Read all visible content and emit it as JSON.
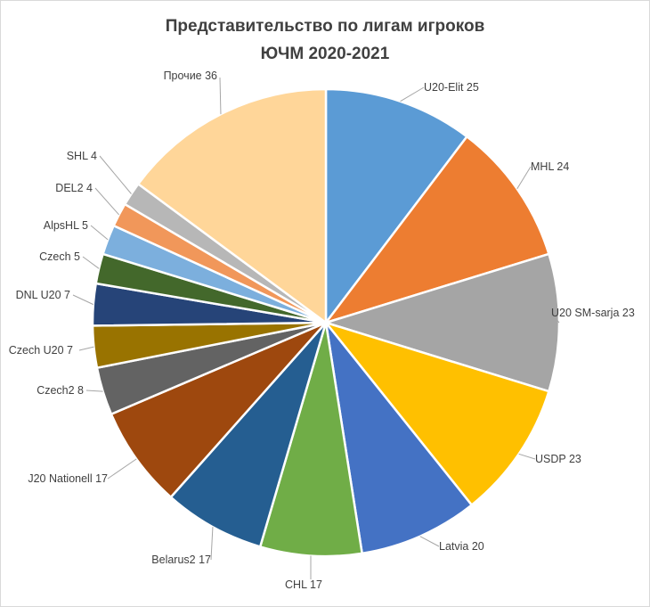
{
  "chart_data": {
    "type": "pie",
    "title_line1": "Представительство по лигам игроков",
    "title_line2": "ЮЧМ 2020-2021",
    "slices": [
      {
        "label": "U20-Elit",
        "value": 25,
        "color": "#5b9bd5"
      },
      {
        "label": "MHL",
        "value": 24,
        "color": "#ed7d31"
      },
      {
        "label": "U20 SM-sarja",
        "value": 23,
        "color": "#a5a5a5"
      },
      {
        "label": "USDP",
        "value": 23,
        "color": "#ffc000"
      },
      {
        "label": "Latvia",
        "value": 20,
        "color": "#4472c4"
      },
      {
        "label": "CHL",
        "value": 17,
        "color": "#70ad47"
      },
      {
        "label": "Belarus2",
        "value": 17,
        "color": "#255e91"
      },
      {
        "label": "J20 Nationell",
        "value": 17,
        "color": "#9e480e"
      },
      {
        "label": "Czech2",
        "value": 8,
        "color": "#636363"
      },
      {
        "label": "Czech U20",
        "value": 7,
        "color": "#997300"
      },
      {
        "label": "DNL U20",
        "value": 7,
        "color": "#264478"
      },
      {
        "label": "Czech",
        "value": 5,
        "color": "#43682b"
      },
      {
        "label": "AlpsHL",
        "value": 5,
        "color": "#7cafdd"
      },
      {
        "label": "DEL2",
        "value": 4,
        "color": "#f1975a"
      },
      {
        "label": "SHL",
        "value": 4,
        "color": "#b7b7b7"
      },
      {
        "label": "Прочие",
        "value": 36,
        "color": "#ffd699"
      }
    ],
    "data_labels": "outside-end with leader lines",
    "legend": "none"
  }
}
